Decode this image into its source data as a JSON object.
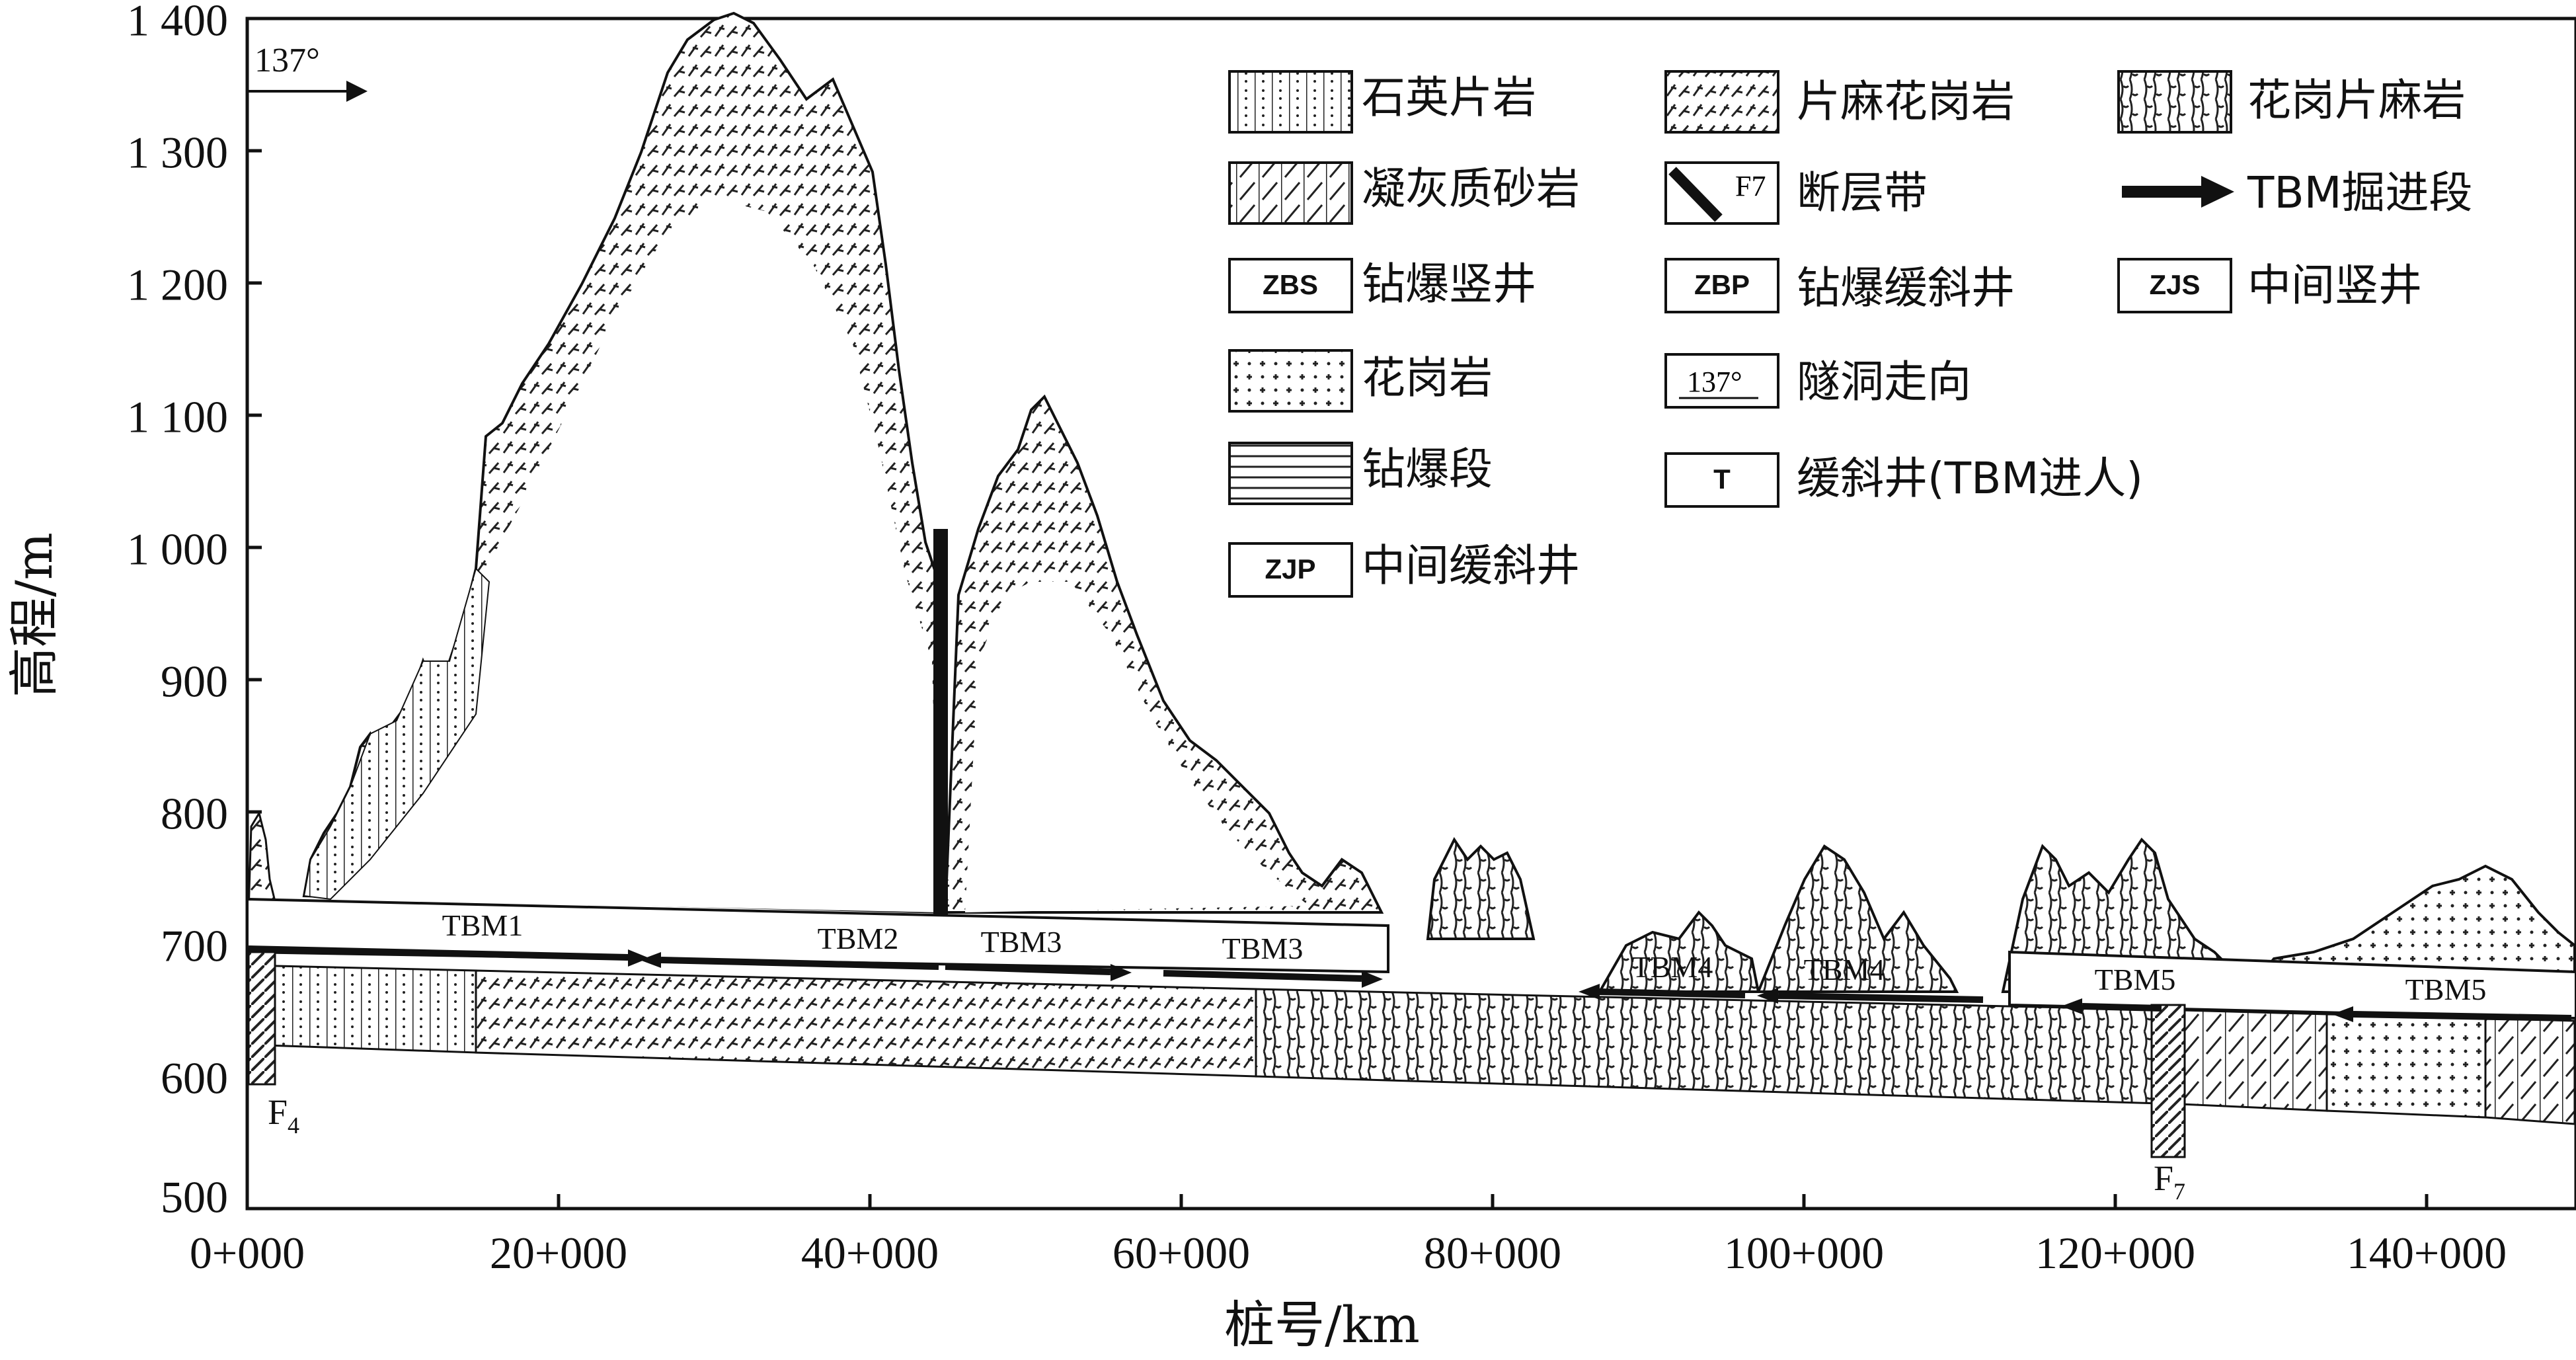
{
  "y_axis": {
    "title": "高程/m",
    "ticks": [
      "1 400",
      "1 300",
      "1 200",
      "1 100",
      "1 000",
      "900",
      "800",
      "700",
      "600",
      "500"
    ]
  },
  "x_axis": {
    "title": "桩号/km",
    "ticks": [
      "0+000",
      "20+000",
      "40+000",
      "60+000",
      "80+000",
      "100+000",
      "120+000",
      "140+000"
    ]
  },
  "direction_label": "137°",
  "legend": {
    "quartz_schist": "石英片岩",
    "gneissic_granite": "片麻花岗岩",
    "granitic_gneiss": "花岗片麻岩",
    "tuffaceous_sandstone": "凝灰质砂岩",
    "fault_zone": "断层带",
    "fault_symbol": "F7",
    "tbm_drive": "TBM掘进段",
    "zbs_code": "ZBS",
    "zbs": "钻爆竖井",
    "zbp_code": "ZBP",
    "zbp": "钻爆缓斜井",
    "zjs_code": "ZJS",
    "zjs": "中间竖井",
    "granite": "花岗岩",
    "direction_code": "137°",
    "direction": "隧洞走向",
    "drill_blast": "钻爆段",
    "t_code": "T",
    "t_shaft": "缓斜井(TBM进人)",
    "zjp_code": "ZJP",
    "zjp": "中间缓斜井"
  },
  "segments": [
    "TBM1",
    "TBM2",
    "TBM3",
    "TBM3",
    "TBM4",
    "TBM4",
    "TBM5",
    "TBM5"
  ],
  "faults": [
    {
      "base": "F",
      "sub": "4"
    },
    {
      "base": "F",
      "sub": "7"
    }
  ]
}
